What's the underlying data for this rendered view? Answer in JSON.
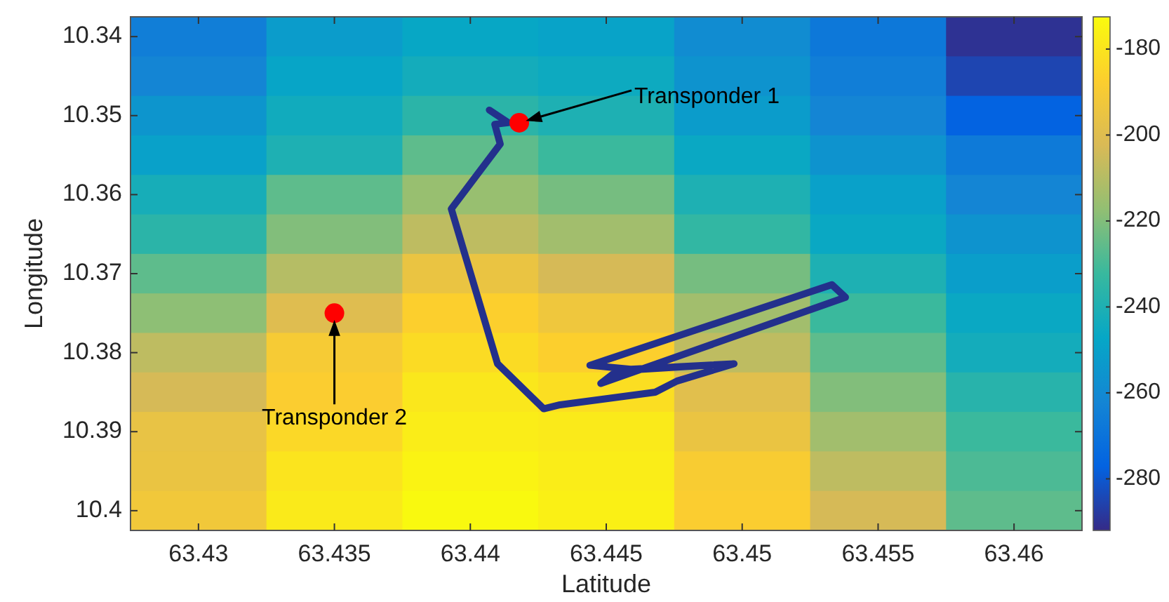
{
  "chart_data": {
    "type": "heatmap",
    "xlabel": "Latitude",
    "ylabel": "Longitude",
    "xlim": [
      63.4275,
      63.4625
    ],
    "ylim": [
      10.4025,
      10.3375
    ],
    "xticks": [
      63.43,
      63.435,
      63.44,
      63.445,
      63.45,
      63.455,
      63.46
    ],
    "yticks": [
      10.34,
      10.35,
      10.36,
      10.37,
      10.38,
      10.39,
      10.4
    ],
    "clim": [
      -292,
      -172.5
    ],
    "cticks": [
      -280,
      -260,
      -240,
      -220,
      -200,
      -180
    ],
    "cells": [
      [
        -265,
        -252,
        -247,
        -249,
        -259,
        -268,
        -290
      ],
      [
        -262,
        -248,
        -243,
        -245,
        -256,
        -265,
        -285
      ],
      [
        -255,
        -244,
        -236,
        -240,
        -252,
        -262,
        -277
      ],
      [
        -250,
        -240,
        -226,
        -232,
        -246,
        -256,
        -267
      ],
      [
        -242,
        -226,
        -216,
        -222,
        -240,
        -250,
        -262
      ],
      [
        -236,
        -220,
        -208,
        -214,
        -234,
        -246,
        -256
      ],
      [
        -226,
        -210,
        -195,
        -203,
        -222,
        -240,
        -251
      ],
      [
        -218,
        -200,
        -187,
        -193,
        -214,
        -232,
        -246
      ],
      [
        -208,
        -190,
        -183,
        -187,
        -208,
        -226,
        -243
      ],
      [
        -203,
        -188,
        -179,
        -182,
        -199,
        -220,
        -237
      ],
      [
        -196,
        -184,
        -177,
        -178,
        -195,
        -214,
        -232
      ],
      [
        -195,
        -180,
        -175,
        -177,
        -189,
        -208,
        -229
      ],
      [
        -192,
        -178,
        -173,
        -176,
        -188,
        -203,
        -226
      ]
    ],
    "series": [
      {
        "type": "line",
        "color": "#23308c",
        "x": [
          63.4407,
          63.4414,
          63.4409,
          63.4411,
          63.4393,
          63.441,
          63.4427,
          63.4433,
          63.4468,
          63.4476,
          63.4497,
          63.4459,
          63.4444,
          63.4533,
          63.4538,
          63.4448,
          63.4454,
          63.4497
        ],
        "values": [
          10.3493,
          10.3509,
          10.3511,
          10.3536,
          10.3618,
          10.3814,
          10.3871,
          10.3866,
          10.385,
          10.3836,
          10.3814,
          10.3821,
          10.3816,
          10.3714,
          10.373,
          10.3839,
          10.3823,
          10.3814
        ]
      },
      {
        "type": "scatter",
        "marker": "circle",
        "color": "#ff0000",
        "x": [
          63.4418,
          63.435
        ],
        "values": [
          10.3509,
          10.375
        ]
      }
    ],
    "annotations": [
      {
        "text": "Transponder 1",
        "x": 63.4418,
        "y": 10.3509
      },
      {
        "text": "Transponder 2",
        "x": 63.435,
        "y": 10.375
      }
    ]
  }
}
